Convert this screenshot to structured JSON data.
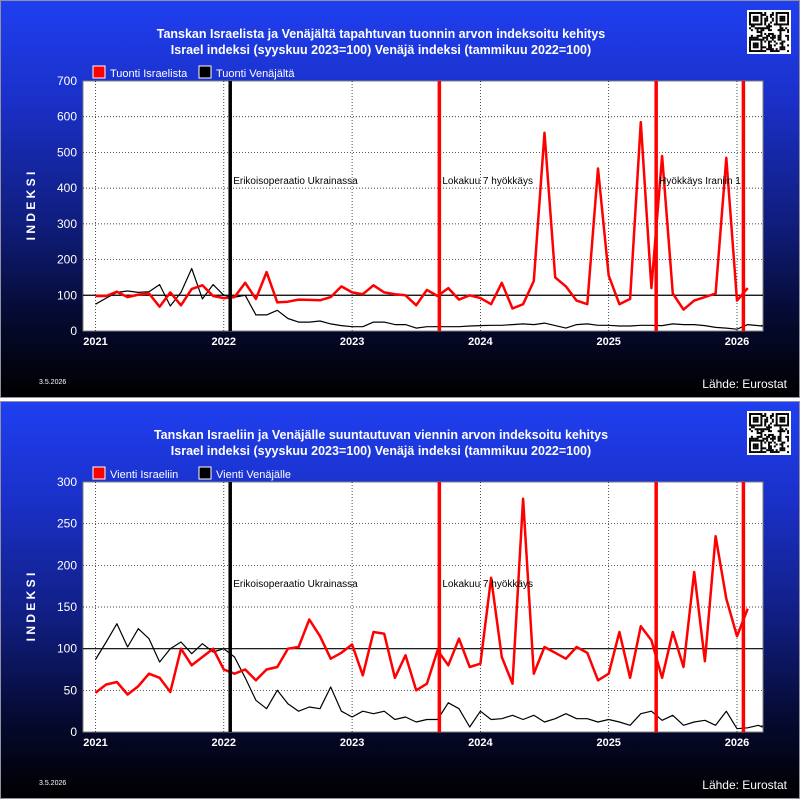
{
  "panels": [
    {
      "title_line1": "Tanskan Israelista ja Venäjältä tapahtuvan tuonnin arvon indeksoitu kehitys",
      "title_line2": "Israel indeksi (syyskuu 2023=100) Venäjä indeksi (tammikuu 2022=100)",
      "date": "3.5.2026",
      "source": "Lähde: Eurostat",
      "qr_icon": "qr-code-icon",
      "chart_data": {
        "type": "line",
        "xlabel": "",
        "ylabel": "I N D E K S I",
        "xlim": [
          2021.0,
          2026.17
        ],
        "ylim": [
          0,
          700
        ],
        "yticks": [
          0,
          100,
          200,
          300,
          400,
          500,
          600,
          700
        ],
        "xticks": [
          2021,
          2022,
          2023,
          2024,
          2025,
          2026
        ],
        "xtick_labels": [
          "2021",
          "2022",
          "2023",
          "2024",
          "2025",
          "2026"
        ],
        "grid": true,
        "reference_line": 100,
        "legend_position": "top-left",
        "series": [
          {
            "name": "Tuonti Israelista",
            "color": "#ff0000",
            "x_start": 2021.0,
            "x_step": 0.08333,
            "values": [
              98,
              98,
              110,
              95,
              102,
              105,
              68,
              108,
              72,
              118,
              128,
              98,
              92,
              95,
              135,
              90,
              165,
              80,
              82,
              88,
              87,
              86,
              95,
              125,
              108,
              103,
              128,
              108,
              103,
              100,
              72,
              115,
              98,
              120,
              88,
              100,
              92,
              75,
              135,
              63,
              75,
              140,
              555,
              150,
              125,
              85,
              75,
              455,
              155,
              75,
              90,
              585,
              120,
              490,
              105,
              60,
              85,
              95,
              105,
              485,
              85,
              120
            ],
            "line_width": 2.5
          },
          {
            "name": "Tuonti Venäjältä",
            "color": "#000000",
            "x_start": 2021.0,
            "x_step": 0.08333,
            "values": [
              75,
              92,
              108,
              112,
              108,
              110,
              130,
              70,
              108,
              175,
              90,
              130,
              100,
              95,
              100,
              45,
              45,
              58,
              35,
              25,
              25,
              28,
              20,
              15,
              12,
              12,
              25,
              25,
              18,
              18,
              8,
              12,
              12,
              12,
              12,
              14,
              15,
              16,
              16,
              18,
              20,
              18,
              22,
              15,
              8,
              18,
              20,
              16,
              16,
              14,
              14,
              16,
              16,
              15,
              20,
              18,
              18,
              15,
              10,
              8,
              5,
              18,
              15,
              14,
              16,
              15,
              15,
              12
            ],
            "line_width": 1.2
          }
        ],
        "vertical_lines": [
          {
            "x": 2022.05,
            "color": "#000000",
            "label": "Erikoisoperaatio Ukrainassa"
          },
          {
            "x": 2023.68,
            "color": "#ff0000",
            "label": "Lokakuu 7 hyökkäys"
          },
          {
            "x": 2025.37,
            "color": "#ff0000",
            "label": "Hyökkäys Iraniin 1"
          },
          {
            "x": 2026.05,
            "color": "#ff0000",
            "label": ""
          }
        ]
      }
    },
    {
      "title_line1": "Tanskan Israeliin ja Venäjälle suuntautuvan viennin arvon indeksoitu kehitys",
      "title_line2": "Israel indeksi (syyskuu 2023=100) Venäjä indeksi (tammikuu 2022=100)",
      "date": "3.5.2026",
      "source": "Lähde: Eurostat",
      "qr_icon": "qr-code-icon",
      "chart_data": {
        "type": "line",
        "xlabel": "",
        "ylabel": "I N D E K S I",
        "xlim": [
          2021.0,
          2026.17
        ],
        "ylim": [
          0,
          300
        ],
        "yticks": [
          0,
          50,
          100,
          150,
          200,
          250,
          300
        ],
        "xticks": [
          2021,
          2022,
          2023,
          2024,
          2025,
          2026
        ],
        "xtick_labels": [
          "2021",
          "2022",
          "2023",
          "2024",
          "2025",
          "2026"
        ],
        "grid": true,
        "reference_line": 100,
        "legend_position": "top-left",
        "series": [
          {
            "name": "Vienti Israeliin",
            "color": "#ff0000",
            "x_start": 2021.0,
            "x_step": 0.08333,
            "values": [
              47,
              57,
              60,
              45,
              55,
              70,
              65,
              48,
              100,
              80,
              90,
              100,
              75,
              70,
              75,
              62,
              75,
              78,
              100,
              102,
              135,
              115,
              88,
              95,
              105,
              68,
              120,
              118,
              65,
              92,
              50,
              58,
              98,
              80,
              112,
              78,
              82,
              185,
              90,
              58,
              280,
              70,
              102,
              95,
              88,
              102,
              95,
              62,
              70,
              120,
              65,
              127,
              110,
              65,
              120,
              78,
              192,
              85,
              235,
              160,
              115,
              148
            ],
            "line_width": 2.5
          },
          {
            "name": "Vienti Venäjälle",
            "color": "#000000",
            "x_start": 2021.0,
            "x_step": 0.08333,
            "values": [
              87,
              108,
              130,
              102,
              124,
              112,
              84,
              100,
              108,
              94,
              106,
              96,
              100,
              90,
              65,
              38,
              28,
              50,
              34,
              25,
              30,
              28,
              54,
              25,
              18,
              25,
              22,
              25,
              15,
              18,
              12,
              15,
              15,
              35,
              28,
              6,
              25,
              15,
              16,
              20,
              15,
              20,
              12,
              16,
              22,
              16,
              16,
              12,
              15,
              12,
              8,
              22,
              25,
              14,
              20,
              8,
              12,
              14,
              8,
              25,
              4,
              5,
              8,
              6,
              8
            ],
            "line_width": 1.2
          }
        ],
        "vertical_lines": [
          {
            "x": 2022.05,
            "color": "#000000",
            "label": "Erikoisoperaatio Ukrainassa"
          },
          {
            "x": 2023.68,
            "color": "#ff0000",
            "label": "Lokakuu 7 hyökkäys"
          },
          {
            "x": 2025.37,
            "color": "#ff0000",
            "label": ""
          },
          {
            "x": 2026.05,
            "color": "#ff0000",
            "label": ""
          }
        ]
      }
    }
  ]
}
